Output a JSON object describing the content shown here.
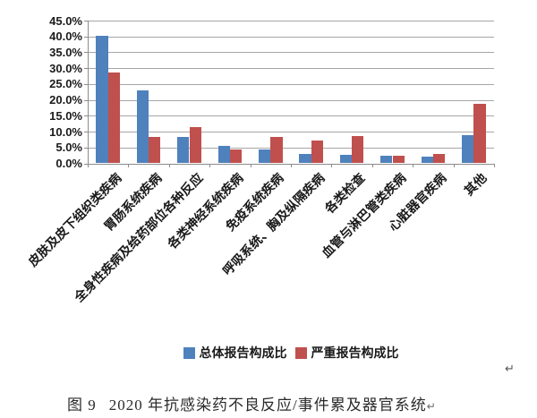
{
  "chart_data": {
    "type": "bar",
    "title": "",
    "categories": [
      "皮肤及皮下组织类疾病",
      "胃肠系统疾病",
      "全身性疾病及给药部位各种反应",
      "各类神经系统疾病",
      "免疫系统疾病",
      "呼吸系统、胸及纵隔疾病",
      "各类检查",
      "血管与淋巴管类疾病",
      "心脏器官疾病",
      "其他"
    ],
    "series": [
      {
        "name": "总体报告构成比",
        "color": "#4F81BD",
        "values": [
          40.2,
          23.0,
          8.3,
          5.6,
          4.4,
          3.0,
          2.8,
          2.5,
          2.0,
          9.0
        ]
      },
      {
        "name": "严重报告构成比",
        "color": "#C0504D",
        "values": [
          28.7,
          8.3,
          11.3,
          4.5,
          8.2,
          7.3,
          8.7,
          2.5,
          2.9,
          18.7
        ]
      }
    ],
    "ylim": [
      0,
      45
    ],
    "y_tick_labels": [
      "0.0%",
      "5.0%",
      "10.0%",
      "15.0%",
      "20.0%",
      "25.0%",
      "30.0%",
      "35.0%",
      "40.0%",
      "45.0%"
    ],
    "grid": true,
    "gridline_color": "#a6a6a6",
    "axis_color": "#8c8c8c",
    "legend_position": "bottom"
  },
  "caption": {
    "label": "图 9",
    "text": "2020 年抗感染药不良反应/事件累及器官系统",
    "paragraph_mark": "↵"
  },
  "document": {
    "floating_paragraph_mark": "↵"
  }
}
